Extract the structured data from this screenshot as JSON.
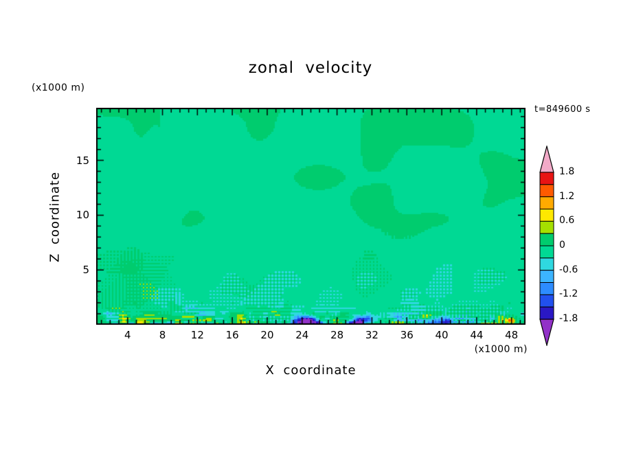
{
  "title": "zonal velocity",
  "labels": {
    "time": "t=849600 s",
    "z_units": "(x1000 m)",
    "x_units": "(x1000 m)",
    "x_axis": "X coordinate",
    "z_axis": "Z coordinate"
  },
  "chart_data": {
    "type": "heatmap",
    "title": "zonal velocity",
    "xlabel": "X coordinate",
    "ylabel": "Z coordinate",
    "x_units": "(x1000 m)",
    "z_units": "(x1000 m)",
    "time_label": "t=849600 s",
    "x_range": [
      0.4,
      49.6
    ],
    "z_range": [
      0,
      19.8
    ],
    "x_ticks": [
      4,
      8,
      12,
      16,
      20,
      24,
      28,
      32,
      36,
      40,
      44,
      48
    ],
    "x_minor_step": 1,
    "z_ticks": [
      5,
      10,
      15
    ],
    "z_minor_step": 1,
    "colorbar": {
      "levels": [
        -1.8,
        -1.5,
        -1.2,
        -0.9,
        -0.6,
        -0.3,
        0,
        0.3,
        0.6,
        0.9,
        1.2,
        1.5,
        1.8
      ],
      "colors": [
        "#2a18c4",
        "#2150ee",
        "#2d8cff",
        "#3cb4ff",
        "#2fd8e0",
        "#00d994",
        "#00cc6e",
        "#a5e000",
        "#ffe800",
        "#ffaa00",
        "#ff5a00",
        "#e81414"
      ],
      "under_color": "#9232c8",
      "over_color": "#f2aac8",
      "labels": [
        "1.8",
        "1.2",
        "0.6",
        "0",
        "-0.6",
        "-1.2",
        "-1.8"
      ]
    },
    "field_description": "Zonal velocity contour section: values mostly between -0.3 and 0.3 (two green tones) aloft with smooth large patches; fine grid-scale turbulent speckle of roughly +/-0.3 to 0.9 (cyan/yellow flecks) below about 9 km growing toward the surface; in the lowest ~1 km strong elongated streaks reaching below -1.8 (navy/purple) and positive flecks above +0.9 (orange/red)."
  }
}
